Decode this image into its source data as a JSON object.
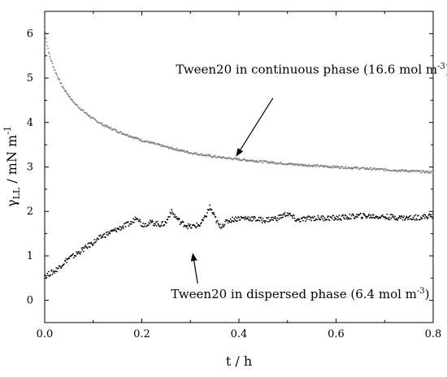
{
  "chart_data": {
    "type": "scatter",
    "xlabel": "t / h",
    "ylabel": {
      "main": "γ",
      "sub": "LL",
      "rest": " / mN m",
      "sup": "-1"
    },
    "xlim": [
      0,
      0.8
    ],
    "ylim": [
      -0.5,
      6.5
    ],
    "x_ticks": [
      0.0,
      0.2,
      0.4,
      0.6,
      0.8
    ],
    "x_tick_labels": [
      "0.0",
      "0.2",
      "0.4",
      "0.6",
      "0.8"
    ],
    "y_ticks": [
      0,
      1,
      2,
      3,
      4,
      5,
      6
    ],
    "y_tick_labels": [
      "0",
      "1",
      "2",
      "3",
      "4",
      "5",
      "6"
    ],
    "grid": false,
    "legend": "none",
    "series": [
      {
        "color": "#808080",
        "x": [
          0.0,
          0.005,
          0.01,
          0.02,
          0.03,
          0.04,
          0.05,
          0.06,
          0.08,
          0.1,
          0.12,
          0.15,
          0.18,
          0.2,
          0.25,
          0.3,
          0.35,
          0.4,
          0.45,
          0.5,
          0.55,
          0.6,
          0.65,
          0.7,
          0.75,
          0.8
        ],
        "y": [
          6.1,
          5.75,
          5.5,
          5.2,
          4.95,
          4.75,
          4.6,
          4.45,
          4.25,
          4.08,
          3.95,
          3.8,
          3.68,
          3.6,
          3.45,
          3.32,
          3.23,
          3.17,
          3.12,
          3.07,
          3.03,
          3.0,
          2.97,
          2.94,
          2.91,
          2.88
        ]
      },
      {
        "color": "#000000",
        "x": [
          0.0,
          0.01,
          0.02,
          0.03,
          0.04,
          0.05,
          0.06,
          0.08,
          0.1,
          0.12,
          0.14,
          0.16,
          0.18,
          0.19,
          0.2,
          0.22,
          0.24,
          0.25,
          0.26,
          0.28,
          0.3,
          0.32,
          0.33,
          0.34,
          0.36,
          0.38,
          0.4,
          0.42,
          0.45,
          0.48,
          0.5,
          0.52,
          0.55,
          0.6,
          0.65,
          0.7,
          0.75,
          0.8
        ],
        "y": [
          0.55,
          0.6,
          0.65,
          0.75,
          0.85,
          0.95,
          1.0,
          1.15,
          1.3,
          1.45,
          1.55,
          1.65,
          1.75,
          1.9,
          1.7,
          1.75,
          1.7,
          1.75,
          2.0,
          1.75,
          1.65,
          1.7,
          1.85,
          2.1,
          1.65,
          1.8,
          1.85,
          1.85,
          1.8,
          1.85,
          1.95,
          1.8,
          1.85,
          1.85,
          1.9,
          1.88,
          1.85,
          1.9
        ]
      }
    ],
    "annotations": [
      {
        "text": "Tween20 in continuous phase (16.6 mol m",
        "sup": "-3",
        "tail": ")",
        "x": 0.27,
        "y": 5.1,
        "arrow_from": [
          0.47,
          4.55
        ],
        "arrow_to": [
          0.395,
          3.25
        ]
      },
      {
        "text": "Tween20 in dispersed phase (6.4 mol m",
        "sup": "-3",
        "tail": ")",
        "x": 0.26,
        "y": 0.05,
        "arrow_from": [
          0.315,
          0.38
        ],
        "arrow_to": [
          0.305,
          1.05
        ]
      }
    ]
  }
}
